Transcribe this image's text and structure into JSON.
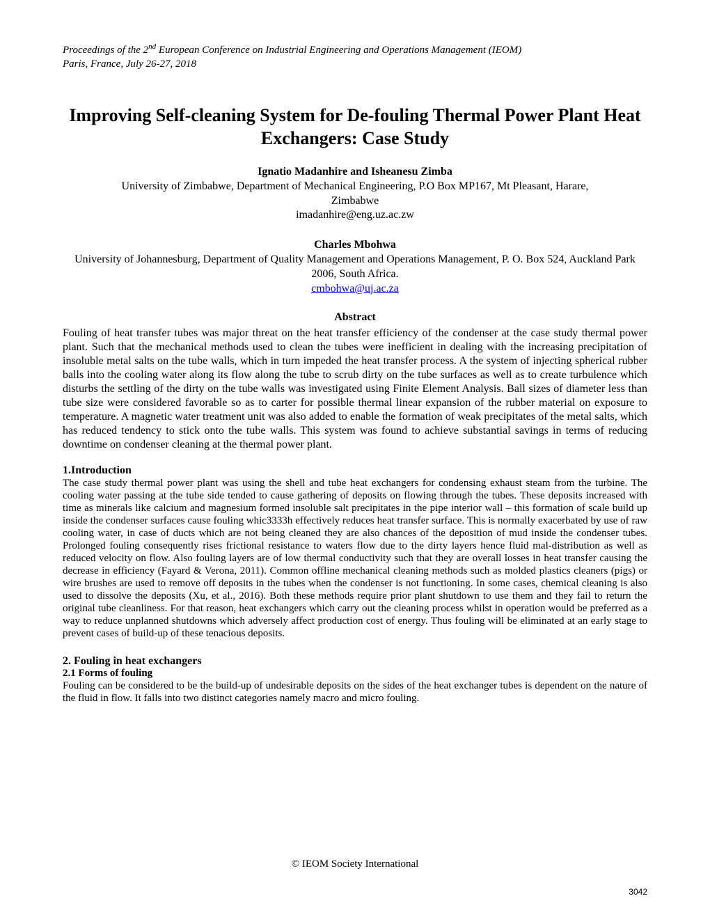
{
  "header": {
    "line1_pre": "Proceedings of the 2",
    "line1_sup": "nd",
    "line1_post": " European Conference on Industrial Engineering and Operations Management (IEOM)",
    "line2": "Paris, France, July 26-27, 2018"
  },
  "title": "Improving Self-cleaning System for De-fouling Thermal Power Plant Heat Exchangers: Case Study",
  "authors": [
    {
      "names": "Ignatio Madanhire  and Isheanesu Zimba",
      "affiliation": "University of Zimbabwe, Department of Mechanical Engineering, P.O Box MP167, Mt Pleasant, Harare,",
      "country": "Zimbabwe",
      "email": "imadanhire@eng.uz.ac.zw",
      "email_link": false
    },
    {
      "names": "Charles Mbohwa",
      "affiliation": "University of Johannesburg, Department of Quality Management and Operations Management, P. O. Box 524, Auckland Park 2006, South Africa.",
      "country": "",
      "email": "cmbohwa@uj.ac.za",
      "email_link": true
    }
  ],
  "abstract_heading": "Abstract",
  "abstract_text": "Fouling of heat transfer tubes was major threat on the heat transfer efficiency of the condenser at the case study thermal power plant. Such that the mechanical methods used to clean the tubes were inefficient in dealing with the increasing precipitation of insoluble metal salts on the tube walls, which in turn impeded the heat transfer process. A the system of injecting  spherical rubber balls into the cooling water along its flow along the tube to scrub dirty on the tube surfaces as well as to create turbulence which disturbs the settling of the dirty on the tube walls was investigated using Finite Element Analysis. Ball sizes of diameter less than tube size were considered favorable so as to carter for possible thermal linear expansion of the rubber material on exposure to temperature. A magnetic water treatment unit was also added to enable the formation of weak precipitates of the metal salts, which has reduced tendency to stick onto the tube walls. This system was found to achieve substantial savings in terms of reducing downtime on condenser cleaning at the thermal power plant.",
  "sections": {
    "intro_heading": "1.Introduction",
    "intro_text": "The case study thermal power plant was using the shell and tube heat exchangers for condensing exhaust steam from the turbine. The cooling water passing at the tube side tended to cause gathering of deposits on flowing through the tubes. These deposits increased with time as minerals like calcium and magnesium formed insoluble salt precipitates in the pipe interior wall – this formation of scale build up inside the condenser surfaces cause fouling whic3333h effectively reduces heat transfer surface. This is normally exacerbated by use of raw cooling water, in case of ducts which are not being cleaned they are also chances of the deposition of mud inside the condenser tubes. Prolonged fouling consequently rises frictional resistance to waters flow due to the dirty layers hence fluid mal-distribution as well as reduced velocity on flow.  Also fouling layers are of low thermal conductivity such that they are overall losses in heat transfer causing the decrease in efficiency (Fayard & Verona, 2011). Common offline mechanical cleaning methods such as molded plastics cleaners (pigs) or wire brushes are used to remove off deposits in the tubes when the condenser is not functioning. In some cases, chemical cleaning is also used to dissolve the deposits (Xu, et al., 2016). Both these methods require prior plant shutdown to use them and they fail to return the original tube cleanliness. For that reason, heat exchangers which carry out the cleaning process whilst in operation would be preferred as a way to reduce unplanned shutdowns which adversely affect production cost of energy. Thus fouling will be eliminated at an early stage to prevent cases of build-up of these tenacious deposits.",
    "section2_heading": "2. Fouling in heat exchangers",
    "subsection21_heading": "2.1 Forms of fouling",
    "subsection21_text": "Fouling can be considered to be the build-up of undesirable deposits on the sides of the heat exchanger tubes is dependent on the nature of the fluid in flow. It falls into two distinct categories namely macro and micro fouling."
  },
  "footer": "© IEOM Society International",
  "page_number": "3042"
}
